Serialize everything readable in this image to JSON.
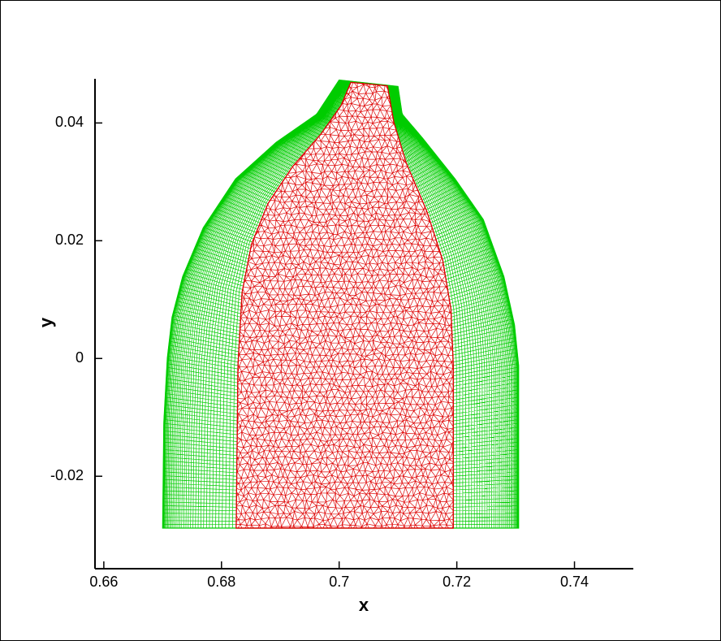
{
  "chart_data": {
    "type": "mesh",
    "x_label": "x",
    "y_label": "y",
    "xlim": [
      0.6585,
      0.75
    ],
    "ylim": [
      -0.0357,
      0.0475
    ],
    "xticks": [
      0.66,
      0.68,
      0.7,
      0.72,
      0.74
    ],
    "yticks": [
      -0.02,
      0,
      0.02,
      0.04
    ],
    "regions": [
      {
        "color": "#00cc00",
        "mesh": "structured",
        "x": [
          0.67,
          0.6702,
          0.6708,
          0.6716,
          0.6734,
          0.6769,
          0.6824,
          0.6893,
          0.6962,
          0.7,
          0.71,
          0.7107,
          0.7142,
          0.7197,
          0.7245,
          0.728,
          0.7298,
          0.7305,
          0.7305
        ],
        "y": [
          -0.0288,
          -0.0109,
          0.0001,
          0.007,
          0.0139,
          0.0222,
          0.0305,
          0.0367,
          0.0415,
          0.0473,
          0.0462,
          0.0415,
          0.0374,
          0.0305,
          0.0236,
          0.0139,
          0.0057,
          -0.0012,
          -0.0288
        ]
      },
      {
        "color": "#dd0000",
        "mesh": "triangular",
        "x": [
          0.6825,
          0.6828,
          0.6835,
          0.6851,
          0.6879,
          0.6921,
          0.6969,
          0.7003,
          0.702,
          0.7082,
          0.7093,
          0.7114,
          0.7149,
          0.7176,
          0.719,
          0.7194,
          0.7194
        ],
        "y": [
          -0.0288,
          -0.0012,
          0.0112,
          0.0194,
          0.0263,
          0.0326,
          0.0381,
          0.0429,
          0.0469,
          0.0463,
          0.0401,
          0.0332,
          0.025,
          0.0167,
          0.0084,
          -0.0012,
          -0.0288
        ]
      }
    ]
  }
}
